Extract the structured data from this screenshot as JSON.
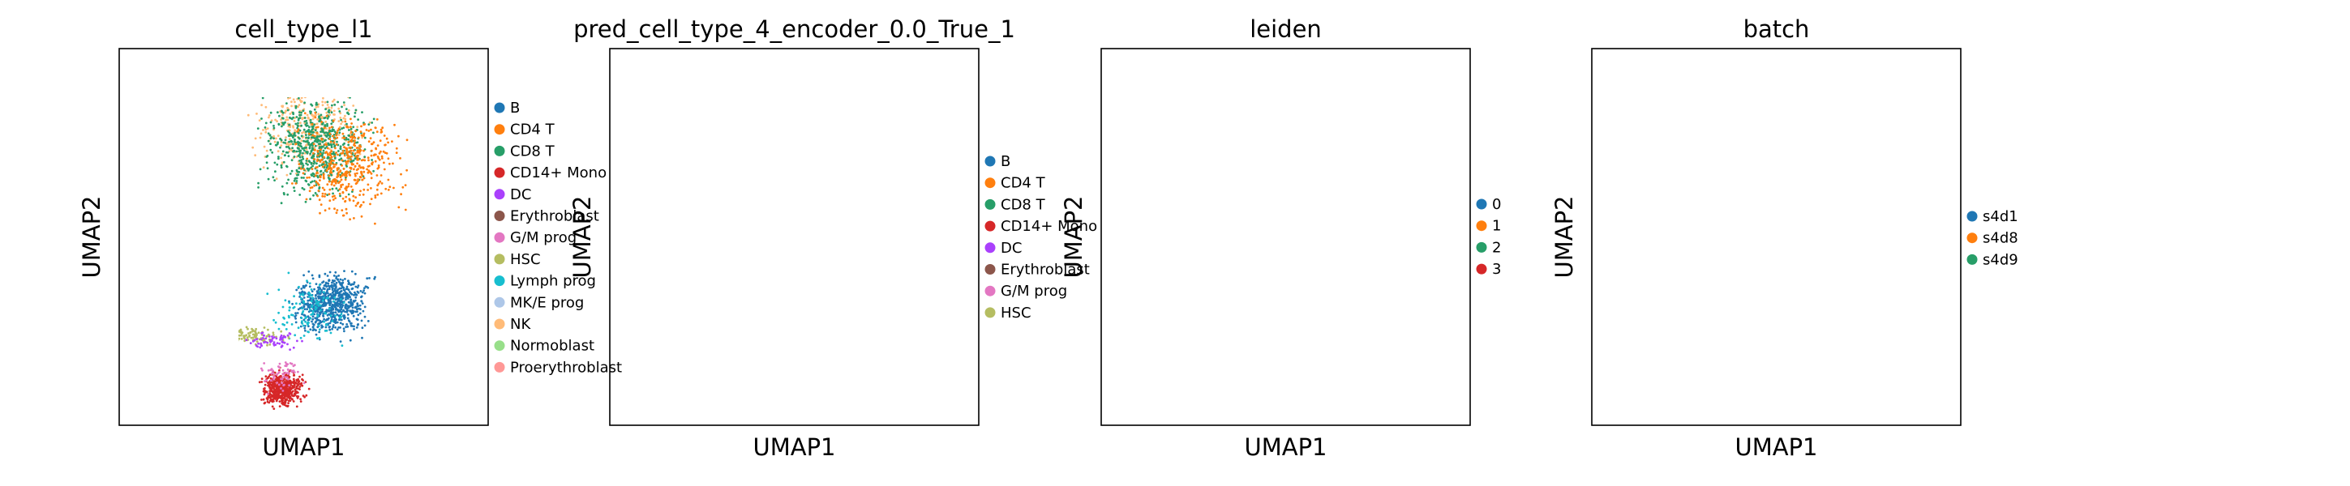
{
  "chart_data": [
    {
      "type": "scatter",
      "title": "cell_type_l1",
      "xlabel": "UMAP1",
      "ylabel": "UMAP2",
      "grid": false,
      "legend_placement": "right",
      "legend": [
        {
          "name": "B",
          "color": "#1f77b4"
        },
        {
          "name": "CD4 T",
          "color": "#ff7f0e"
        },
        {
          "name": "CD8 T",
          "color": "#279e68"
        },
        {
          "name": "CD14+ Mono",
          "color": "#d62728"
        },
        {
          "name": "DC",
          "color": "#aa40fc"
        },
        {
          "name": "Erythroblast",
          "color": "#8c564b"
        },
        {
          "name": "G/M prog",
          "color": "#e377c2"
        },
        {
          "name": "HSC",
          "color": "#b5bd61"
        },
        {
          "name": "Lymph prog",
          "color": "#17becf"
        },
        {
          "name": "MK/E prog",
          "color": "#aec7e8"
        },
        {
          "name": "NK",
          "color": "#ffbb78"
        },
        {
          "name": "Normoblast",
          "color": "#98df8a"
        },
        {
          "name": "Proerythroblast",
          "color": "#ff9896"
        }
      ]
    },
    {
      "type": "scatter",
      "title": "pred_cell_type_4_encoder_0.0_True_1",
      "xlabel": "UMAP1",
      "ylabel": "UMAP2",
      "grid": false,
      "legend_placement": "right",
      "legend": [
        {
          "name": "B",
          "color": "#1f77b4"
        },
        {
          "name": "CD4 T",
          "color": "#ff7f0e"
        },
        {
          "name": "CD8 T",
          "color": "#279e68"
        },
        {
          "name": "CD14+ Mono",
          "color": "#d62728"
        },
        {
          "name": "DC",
          "color": "#aa40fc"
        },
        {
          "name": "Erythroblast",
          "color": "#8c564b"
        },
        {
          "name": "G/M prog",
          "color": "#e377c2"
        },
        {
          "name": "HSC",
          "color": "#b5bd61"
        }
      ]
    },
    {
      "type": "scatter",
      "title": "leiden",
      "xlabel": "UMAP1",
      "ylabel": "UMAP2",
      "grid": false,
      "legend_placement": "right",
      "legend": [
        {
          "name": "0",
          "color": "#1f77b4"
        },
        {
          "name": "1",
          "color": "#ff7f0e"
        },
        {
          "name": "2",
          "color": "#279e68"
        },
        {
          "name": "3",
          "color": "#d62728"
        }
      ]
    },
    {
      "type": "scatter",
      "title": "batch",
      "xlabel": "UMAP1",
      "ylabel": "UMAP2",
      "grid": false,
      "legend_placement": "right",
      "legend": [
        {
          "name": "s4d1",
          "color": "#1f77b4"
        },
        {
          "name": "s4d8",
          "color": "#ff7f0e"
        },
        {
          "name": "s4d9",
          "color": "#279e68"
        }
      ]
    }
  ]
}
